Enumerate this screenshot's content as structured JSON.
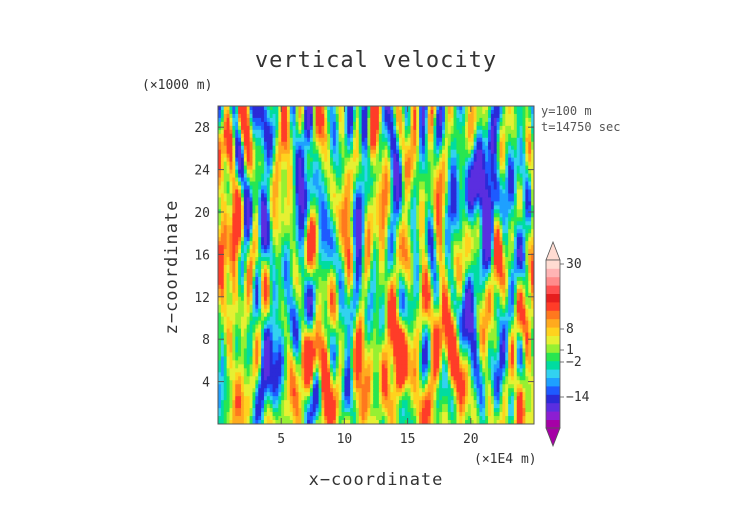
{
  "chart_data": {
    "type": "heatmap",
    "title": "vertical velocity",
    "xlabel": "x−coordinate",
    "ylabel": "z−coordinate",
    "x_unit": "(×1E4 m)",
    "y_unit": "(×1000 m)",
    "annotations": [
      "y=100 m",
      "t=14750 sec"
    ],
    "xlim": [
      0,
      25
    ],
    "ylim": [
      0,
      30
    ],
    "x_ticks": [
      5,
      10,
      15,
      20
    ],
    "y_ticks": [
      4,
      8,
      12,
      16,
      20,
      24,
      28
    ],
    "x_tick_labels": [
      "5",
      "10",
      "15",
      "20"
    ],
    "y_tick_labels": [
      "4",
      "8",
      "12",
      "16",
      "20",
      "24",
      "28"
    ],
    "colorbar": {
      "labeled_values": [
        30,
        8,
        1,
        -2,
        -14
      ],
      "labels": [
        "30",
        "8",
        "1",
        "−2",
        "−14"
      ],
      "colors_low_to_high": [
        "#a600a6",
        "#8c1ed2",
        "#5a2ee0",
        "#2a2ad8",
        "#1e5aff",
        "#1ea0ff",
        "#32d2f0",
        "#00dca0",
        "#28e650",
        "#96f032",
        "#e6f032",
        "#ffd21e",
        "#ffaa1e",
        "#ff781e",
        "#ff3c28",
        "#e61e1e",
        "#ff5050",
        "#ff8c8c",
        "#ffb4b4",
        "#ffdcd2"
      ]
    },
    "grid": false,
    "legend": "colorbar-right"
  }
}
